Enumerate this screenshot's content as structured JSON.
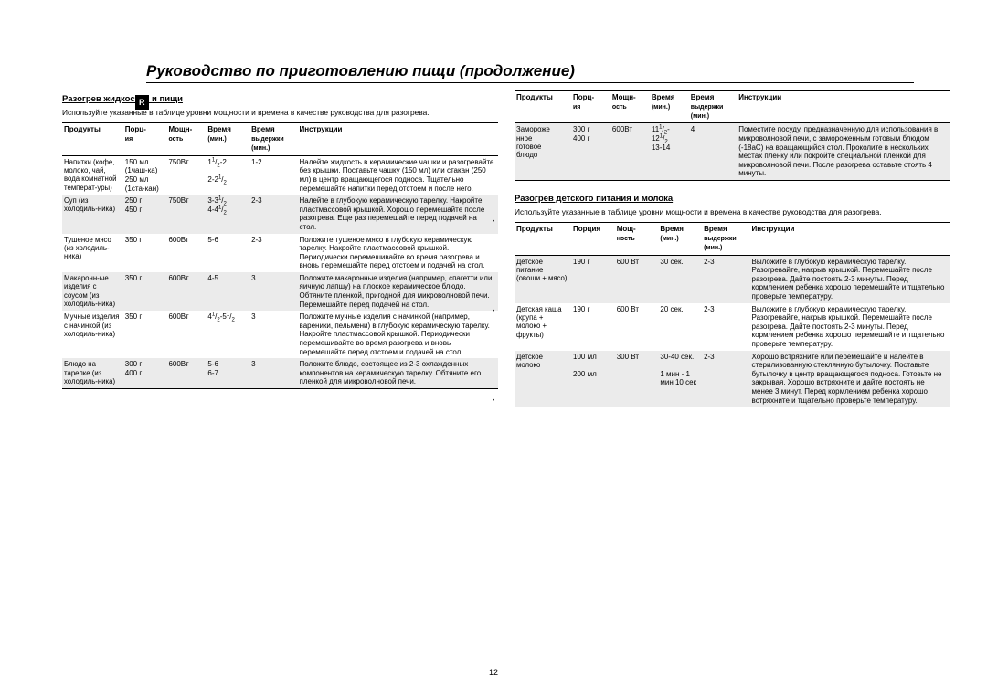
{
  "title": "Руководство по приготовлению пищи (продолжение)",
  "lang_badge": "R",
  "page_number": "12",
  "left": {
    "heading": "Разогрев жидкостей и пищи",
    "intro": "Используйте указанные в таблице уровни мощности и времена в качестве руководства для разогрева.",
    "thead": {
      "c0": "Продукты",
      "c1": "Порц-",
      "c1b": "ия",
      "c2": "Мощн-",
      "c2b": "ость",
      "c3": "Время",
      "c3b": "(мин.)",
      "c4": "Время",
      "c4b": "выдержки",
      "c4c": "(мин.)",
      "c5": "Инструкции"
    },
    "rows": [
      {
        "alt": false,
        "c0": "Напитки (кофе, молоко, чай, вода комнатной температ-уры)",
        "c1": "150 мл (1чаш-ка)\n250 мл (1ста-кан)",
        "c2": "750Вт",
        "c3": "1¹/₂-2\n\n2-2¹/₂",
        "c4": "1-2",
        "c5": "Налейте жидкость в керамические чашки и разогревайте без крышки. Поставьте чашку (150 мл) или стакан (250 мл) в центр вращающегося подноса. Тщательно перемешайте напитки перед отстоем и после него."
      },
      {
        "alt": true,
        "c0": "Суп (из холодиль-ника)",
        "c1": "250 г\n450 г",
        "c2": "750Вт",
        "c3": "3-3¹/₂\n4-4¹/₂",
        "c4": "2-3",
        "c5": "Налейте в глубокую керамическую тарелку. Накройте пластмассовой крышкой. Хорошо перемешайте после разогрева. Еще раз перемешайте перед подачей на стол."
      },
      {
        "alt": false,
        "c0": "Тушеное мясо (из холодиль-ника)",
        "c1": "350 г",
        "c2": "600Вт",
        "c3": "5-6",
        "c4": "2-3",
        "c5": "Положите тушеное мясо в глубокую керамическую тарелку. Накройте пластмассовой крышкой. Периодически перемешивайте во время разогрева и вновь перемешайте перед отстоем и подачей на стол."
      },
      {
        "alt": true,
        "c0": "Макаронн-ые изделия с соусом (из холодиль-ника)",
        "c1": "350 г",
        "c2": "600Вт",
        "c3": "4-5",
        "c4": "3",
        "c5": "Положите макаронные изделия (например, спагетти или яичную лапшу) на плоское керамическое блюдо. Обтяните пленкой, пригодной для микроволновой печи. Перемешайте перед подачей на стол."
      },
      {
        "alt": false,
        "c0": "Мучные изделия с начинкой (из холодиль-ника)",
        "c1": "350 г",
        "c2": "600Вт",
        "c3": "4¹/₂-5¹/₂",
        "c4": "3",
        "c5": "Положите мучные изделия с начинкой (например, вареники, пельмени) в глубокую керамическую тарелку. Накройте пластмассовой крышкой. Периодически перемешивайте во время разогрева и вновь перемешайте перед отстоем и подачей на стол."
      },
      {
        "alt": true,
        "c0": "Блюдо на тарелке (из холодиль-ника)",
        "c1": "300 г\n400 г",
        "c2": "600Вт",
        "c3": "5-6\n6-7",
        "c4": "3",
        "c5": "Положите блюдо, состоящее из 2-3 охлажденных компонентов на керамическую тарелку. Обтяните его пленкой для микроволновой печи."
      }
    ]
  },
  "right_top": {
    "thead": {
      "c0": "Продукты",
      "c1": "Порц-",
      "c1b": "ия",
      "c2": "Мощн-",
      "c2b": "ость",
      "c3": "Время",
      "c3b": "(мин.)",
      "c4": "Время",
      "c4b": "выдержки",
      "c4c": "(мин.)",
      "c5": "Инструкции"
    },
    "row": {
      "alt": true,
      "c0": "Замороже\nнное\nготовое\nблюдо",
      "c1": "300 г\n400 г",
      "c2": "600Вт",
      "c3": "11¹/₂-\n12¹/₂\n13-14",
      "c4": "4",
      "c5": "Поместите посуду, предназначенную для использования в микроволновой печи, с замороженным готовым блюдом (-18aC) на вращающийся стол. Проколите в нескольких местах плёнку или покройте специальной плёнкой для микроволновой печи. После разогрева оставьте стоять 4 минуты."
    }
  },
  "right_bottom": {
    "heading": "Разогрев детского питания и молока",
    "intro": "Используйте указанные в таблице уровни мощности и времена в качестве руководства для разогрева.",
    "thead": {
      "c0": "Продукты",
      "c1": "Порция",
      "c2": "Мощ-",
      "c2b": "ность",
      "c3": "Время",
      "c3b": "(мин.)",
      "c4": "Время",
      "c4b": "выдержки",
      "c4c": "(мин.)",
      "c5": "Инструкции"
    },
    "rows": [
      {
        "alt": true,
        "c0": "Детское питание (овощи + мясо)",
        "c1": "190 г",
        "c2": "600 Вт",
        "c3": "30 сек.",
        "c4": "2-3",
        "c5": "Выложите в глубокую керамическую тарелку. Разогревайте, накрыв крышкой. Перемешайте после разогрева. Дайте постоять 2-3 минуты. Перед кормлением ребенка хорошо перемешайте и тщательно проверьте температуру."
      },
      {
        "alt": false,
        "c0": "Детская каша (крупа + молоко + фрукты)",
        "c1": "190 г",
        "c2": "600 Вт",
        "c3": "20 сек.",
        "c4": "2-3",
        "c5": "Выложите в глубокую керамическую тарелку. Разогревайте, накрыв крышкой. Перемешайте после разогрева. Дайте постоять 2-3 минуты. Перед кормлением ребенка хорошо перемешайте и тщательно проверьте температуру."
      },
      {
        "alt": true,
        "c0": "Детское молоко",
        "c1": "100 мл\n\n200 мл",
        "c2": "300 Вт",
        "c3": "30-40 сек.\n\n1 мин - 1 мин 10 сек",
        "c4": "2-3",
        "c5": "Хорошо встряхните или перемешайте и налейте в стерилизованную стеклянную бутылочку. Поставьте бутылочку в центр вращающегося подноса. Готовьте не закрывая. Хорошо встряхните и дайте постоять не менее 3 минут. Перед кормлением ребенка хорошо встряхните и тщательно проверьте температуру."
      }
    ]
  }
}
